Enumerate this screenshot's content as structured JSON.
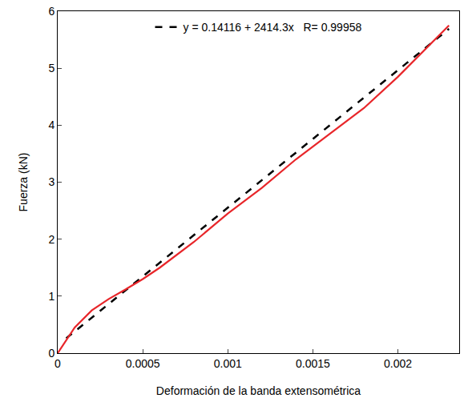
{
  "chart_data": {
    "type": "line",
    "x_label": "Deformación de la banda extensométrica",
    "y_label": "Fuerza (kN)",
    "xlim": [
      0,
      0.00236
    ],
    "ylim": [
      0,
      6
    ],
    "xticks": [
      0,
      0.0005,
      0.001,
      0.0015,
      0.002
    ],
    "yticks": [
      0,
      1,
      2,
      3,
      4,
      5,
      6
    ],
    "grid": false,
    "legend": "top",
    "series": [
      {
        "color": "#e8262a",
        "line_style": "solid",
        "x": [
          0,
          0.0001,
          0.0002,
          0.0003,
          0.0004,
          0.0005,
          0.0006,
          0.0008,
          0.001,
          0.0012,
          0.0014,
          0.0016,
          0.0018,
          0.002,
          0.0022,
          0.0023
        ],
        "values": [
          0,
          0.45,
          0.75,
          0.95,
          1.12,
          1.3,
          1.5,
          1.95,
          2.45,
          2.9,
          3.4,
          3.85,
          4.3,
          4.85,
          5.45,
          5.75
        ]
      },
      {
        "name": "y = 0.14116 + 2414.3x   R= 0.99958",
        "color": "#000000",
        "line_style": "dashed",
        "x": [
          5e-05,
          0.0023
        ],
        "values": [
          0.26,
          5.69
        ]
      }
    ]
  }
}
